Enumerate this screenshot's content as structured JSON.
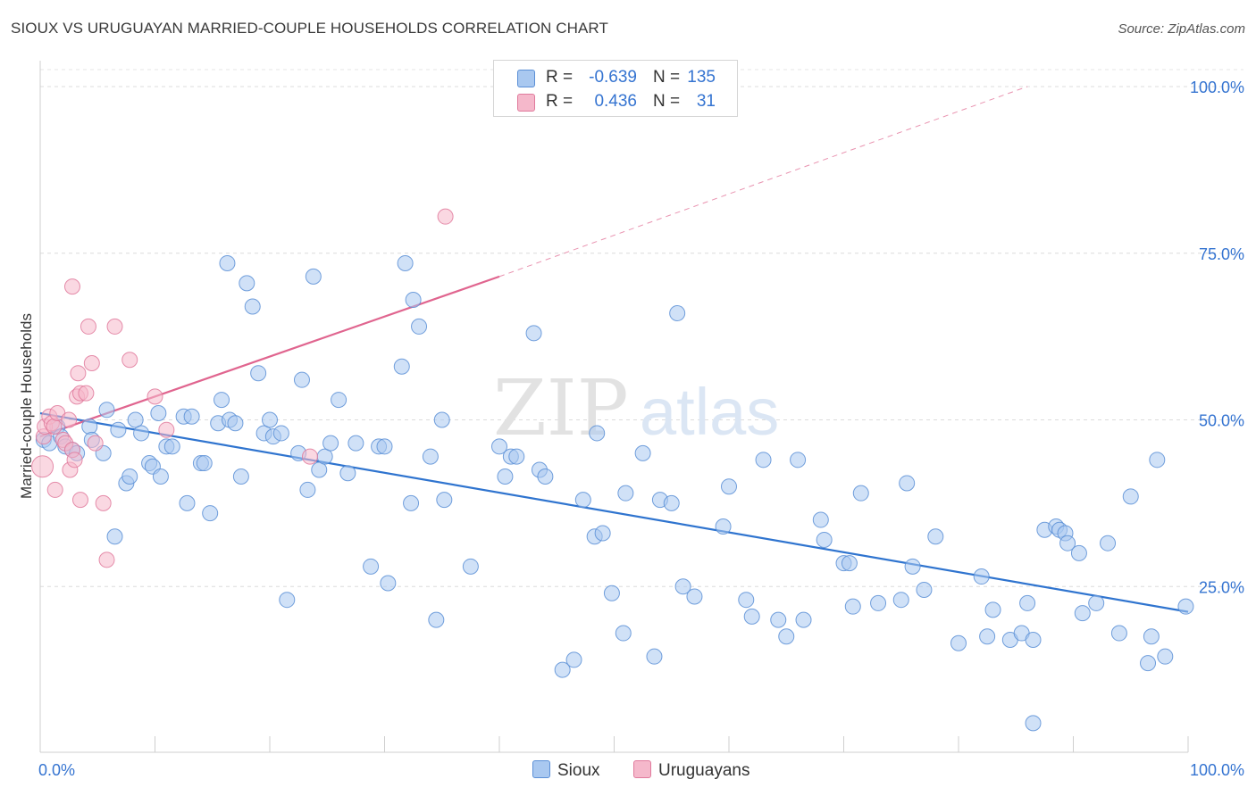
{
  "title": "SIOUX VS URUGUAYAN MARRIED-COUPLE HOUSEHOLDS CORRELATION CHART",
  "source": "Source: ZipAtlas.com",
  "watermark": {
    "zip": "ZIP",
    "atlas": "atlas"
  },
  "legend": {
    "rows": [
      {
        "name": "Sioux",
        "r_label": "R =",
        "r_value": "-0.639",
        "n_label": "N =",
        "n_value": "135",
        "color": "#a9c8f0",
        "stroke": "#5b8fd6"
      },
      {
        "name": "Uruguayans",
        "r_label": "R =",
        "r_value": "0.436",
        "n_label": "N =",
        "n_value": "31",
        "color": "#f5b8cb",
        "stroke": "#e07a9c"
      }
    ]
  },
  "chart_data": {
    "type": "scatter",
    "title": "SIOUX VS URUGUAYAN MARRIED-COUPLE HOUSEHOLDS CORRELATION CHART",
    "xlabel": "",
    "ylabel": "Married-couple Households",
    "xlim": [
      0,
      100
    ],
    "ylim": [
      0,
      100
    ],
    "x_tick_labels": [
      "0.0%",
      "100.0%"
    ],
    "y_tick_labels": [
      "25.0%",
      "50.0%",
      "75.0%",
      "100.0%"
    ],
    "y_ticks": [
      25,
      50,
      75,
      100
    ],
    "grid": true,
    "series": [
      {
        "name": "Sioux",
        "color": "#a9c8f0",
        "edge": "#5b8fd6",
        "trend": {
          "x0": 0,
          "y0": 51.0,
          "x1": 100,
          "y1": 21.2,
          "color": "#2f74cf"
        },
        "points": [
          [
            0.3,
            47.0
          ],
          [
            0.8,
            46.5
          ],
          [
            1.5,
            49.0
          ],
          [
            1.8,
            47.5
          ],
          [
            2.2,
            46.0
          ],
          [
            2.8,
            45.5
          ],
          [
            3.2,
            45.0
          ],
          [
            4.3,
            49.0
          ],
          [
            4.5,
            47.0
          ],
          [
            5.5,
            45.0
          ],
          [
            5.8,
            51.5
          ],
          [
            6.5,
            32.5
          ],
          [
            6.8,
            48.5
          ],
          [
            7.5,
            40.5
          ],
          [
            7.8,
            41.5
          ],
          [
            8.3,
            50.0
          ],
          [
            8.8,
            48.0
          ],
          [
            9.5,
            43.5
          ],
          [
            9.8,
            43.0
          ],
          [
            10.3,
            51.0
          ],
          [
            10.5,
            41.5
          ],
          [
            11.0,
            46.0
          ],
          [
            11.5,
            46.0
          ],
          [
            12.5,
            50.5
          ],
          [
            12.8,
            37.5
          ],
          [
            13.2,
            50.5
          ],
          [
            14.0,
            43.5
          ],
          [
            14.3,
            43.5
          ],
          [
            14.8,
            36.0
          ],
          [
            15.5,
            49.5
          ],
          [
            15.8,
            53.0
          ],
          [
            16.3,
            73.5
          ],
          [
            16.5,
            50.0
          ],
          [
            17.0,
            49.5
          ],
          [
            17.5,
            41.5
          ],
          [
            18.0,
            70.5
          ],
          [
            18.5,
            67.0
          ],
          [
            19.0,
            57.0
          ],
          [
            19.5,
            48.0
          ],
          [
            20.0,
            50.0
          ],
          [
            20.3,
            47.5
          ],
          [
            21.0,
            48.0
          ],
          [
            21.5,
            23.0
          ],
          [
            22.5,
            45.0
          ],
          [
            22.8,
            56.0
          ],
          [
            23.3,
            39.5
          ],
          [
            23.8,
            71.5
          ],
          [
            24.3,
            42.5
          ],
          [
            24.8,
            44.5
          ],
          [
            25.3,
            46.5
          ],
          [
            26.0,
            53.0
          ],
          [
            26.8,
            42.0
          ],
          [
            27.5,
            46.5
          ],
          [
            28.8,
            28.0
          ],
          [
            29.5,
            46.0
          ],
          [
            30.0,
            46.0
          ],
          [
            30.3,
            25.5
          ],
          [
            31.5,
            58.0
          ],
          [
            31.8,
            73.5
          ],
          [
            32.3,
            37.5
          ],
          [
            32.5,
            68.0
          ],
          [
            33.0,
            64.0
          ],
          [
            34.0,
            44.5
          ],
          [
            34.5,
            20.0
          ],
          [
            35.0,
            50.0
          ],
          [
            35.2,
            38.0
          ],
          [
            37.5,
            28.0
          ],
          [
            40.0,
            46.0
          ],
          [
            40.5,
            41.5
          ],
          [
            41.0,
            44.5
          ],
          [
            41.5,
            44.5
          ],
          [
            43.0,
            63.0
          ],
          [
            43.5,
            42.5
          ],
          [
            44.0,
            41.5
          ],
          [
            45.5,
            12.5
          ],
          [
            46.5,
            14.0
          ],
          [
            47.3,
            38.0
          ],
          [
            48.3,
            32.5
          ],
          [
            48.5,
            48.0
          ],
          [
            49.0,
            33.0
          ],
          [
            49.8,
            24.0
          ],
          [
            50.8,
            18.0
          ],
          [
            51.0,
            39.0
          ],
          [
            52.5,
            45.0
          ],
          [
            53.5,
            14.5
          ],
          [
            54.0,
            38.0
          ],
          [
            55.0,
            37.5
          ],
          [
            55.5,
            66.0
          ],
          [
            56.0,
            25.0
          ],
          [
            57.0,
            23.5
          ],
          [
            59.5,
            34.0
          ],
          [
            60.0,
            40.0
          ],
          [
            61.5,
            23.0
          ],
          [
            62.0,
            20.5
          ],
          [
            63.0,
            44.0
          ],
          [
            64.3,
            20.0
          ],
          [
            65.0,
            17.5
          ],
          [
            66.0,
            44.0
          ],
          [
            66.5,
            20.0
          ],
          [
            68.0,
            35.0
          ],
          [
            68.3,
            32.0
          ],
          [
            70.0,
            28.5
          ],
          [
            70.5,
            28.5
          ],
          [
            70.8,
            22.0
          ],
          [
            71.5,
            39.0
          ],
          [
            73.0,
            22.5
          ],
          [
            75.0,
            23.0
          ],
          [
            75.5,
            40.5
          ],
          [
            76.0,
            28.0
          ],
          [
            77.0,
            24.5
          ],
          [
            78.0,
            32.5
          ],
          [
            80.0,
            16.5
          ],
          [
            82.0,
            26.5
          ],
          [
            82.5,
            17.5
          ],
          [
            83.0,
            21.5
          ],
          [
            84.5,
            17.0
          ],
          [
            85.5,
            18.0
          ],
          [
            86.0,
            22.5
          ],
          [
            86.5,
            17.0
          ],
          [
            87.5,
            33.5
          ],
          [
            88.5,
            34.0
          ],
          [
            88.8,
            33.5
          ],
          [
            89.3,
            33.0
          ],
          [
            89.5,
            31.5
          ],
          [
            90.5,
            30.0
          ],
          [
            90.8,
            21.0
          ],
          [
            92.0,
            22.5
          ],
          [
            93.0,
            31.5
          ],
          [
            94.0,
            18.0
          ],
          [
            95.0,
            38.5
          ],
          [
            96.5,
            13.5
          ],
          [
            96.8,
            17.5
          ],
          [
            97.3,
            44.0
          ],
          [
            98.0,
            14.5
          ],
          [
            99.8,
            22.0
          ],
          [
            86.5,
            4.5
          ]
        ]
      },
      {
        "name": "Uruguayans",
        "color": "#f5b8cb",
        "edge": "#e07a9c",
        "trend": {
          "x0": 0,
          "y0": 47.5,
          "x1": 40,
          "y1": 71.5,
          "dash_to_x": 86,
          "dash_to_y": 100,
          "color": "#e0658f"
        },
        "points": [
          [
            0.2,
            43.0
          ],
          [
            0.3,
            47.5
          ],
          [
            0.4,
            49.0
          ],
          [
            0.8,
            50.5
          ],
          [
            1.0,
            49.5
          ],
          [
            1.2,
            49.0
          ],
          [
            1.5,
            51.0
          ],
          [
            1.3,
            39.5
          ],
          [
            2.0,
            47.0
          ],
          [
            2.2,
            46.5
          ],
          [
            2.5,
            50.0
          ],
          [
            2.6,
            42.5
          ],
          [
            2.8,
            45.5
          ],
          [
            3.0,
            44.0
          ],
          [
            2.8,
            70.0
          ],
          [
            3.2,
            53.5
          ],
          [
            3.3,
            57.0
          ],
          [
            3.5,
            54.0
          ],
          [
            3.5,
            38.0
          ],
          [
            4.0,
            54.0
          ],
          [
            4.2,
            64.0
          ],
          [
            4.5,
            58.5
          ],
          [
            4.8,
            46.5
          ],
          [
            5.5,
            37.5
          ],
          [
            5.8,
            29.0
          ],
          [
            6.5,
            64.0
          ],
          [
            7.8,
            59.0
          ],
          [
            10.0,
            53.5
          ],
          [
            11.0,
            48.5
          ],
          [
            23.5,
            44.5
          ],
          [
            35.3,
            80.5
          ]
        ]
      }
    ]
  }
}
